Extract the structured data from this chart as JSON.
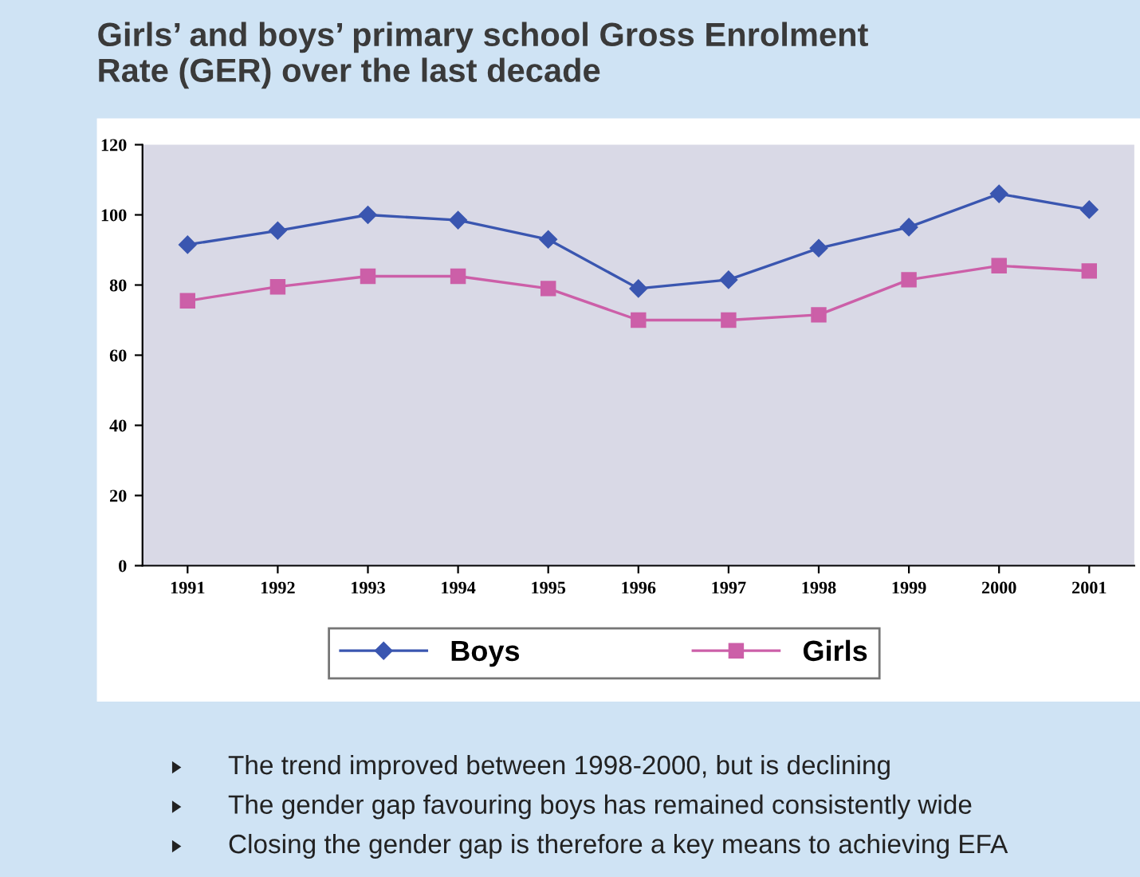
{
  "chart_data": {
    "type": "line",
    "title": "Girls’ and boys’ primary school Gross Enrolment\nRate (GER) over the last decade",
    "categories": [
      "1991",
      "1992",
      "1993",
      "1994",
      "1995",
      "1996",
      "1997",
      "1998",
      "1999",
      "2000",
      "2001"
    ],
    "series": [
      {
        "name": "Boys",
        "color": "#3a56b0",
        "marker": "diamond",
        "values": [
          91.5,
          95.5,
          100,
          98.5,
          93,
          79,
          81.5,
          90.5,
          96.5,
          106,
          101.5
        ]
      },
      {
        "name": "Girls",
        "color": "#cc5fa8",
        "marker": "square",
        "values": [
          75.5,
          79.5,
          82.5,
          82.5,
          79,
          70,
          70,
          71.5,
          81.5,
          85.5,
          84
        ]
      }
    ],
    "ylim": [
      0,
      120
    ],
    "yticks": [
      0,
      20,
      40,
      60,
      80,
      100,
      120
    ],
    "grid": false,
    "legend": "bottom",
    "line_style": "solid",
    "annotations": [
      "The trend improved between 1998-2000, but is declining",
      "The gender gap favouring boys has remained consistently wide",
      "Closing the gender gap is therefore a key means to achieving EFA"
    ]
  }
}
